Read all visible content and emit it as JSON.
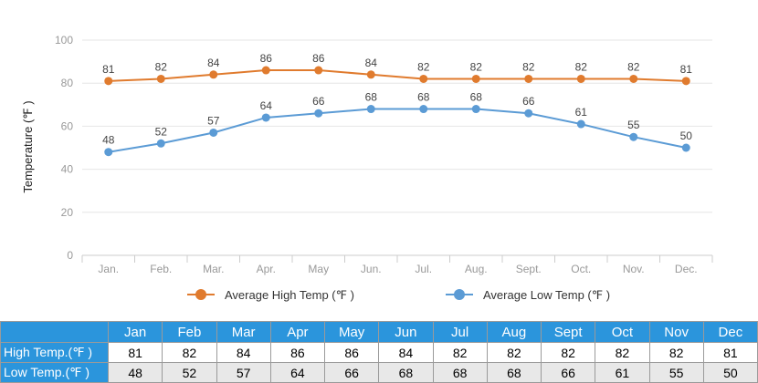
{
  "chart_data": {
    "type": "line",
    "categories": [
      "Jan.",
      "Feb.",
      "Mar.",
      "Apr.",
      "May",
      "Jun.",
      "Jul.",
      "Aug.",
      "Sept.",
      "Oct.",
      "Nov.",
      "Dec."
    ],
    "series": [
      {
        "name": "Average High Temp (℉ )",
        "color": "#e07b2e",
        "values": [
          81,
          82,
          84,
          86,
          86,
          84,
          82,
          82,
          82,
          82,
          82,
          81
        ]
      },
      {
        "name": "Average Low Temp (℉ )",
        "color": "#5b9bd5",
        "values": [
          48,
          52,
          57,
          64,
          66,
          68,
          68,
          68,
          66,
          61,
          55,
          50
        ]
      }
    ],
    "yticks": [
      0,
      20,
      40,
      60,
      80,
      100
    ],
    "ylim": [
      0,
      100
    ],
    "ylabel": "Temperature (℉ )",
    "xlabel": "",
    "title": "",
    "grid": true,
    "legend": "bottom"
  },
  "table": {
    "months": [
      "Jan",
      "Feb",
      "Mar",
      "Apr",
      "May",
      "Jun",
      "Jul",
      "Aug",
      "Sept",
      "Oct",
      "Nov",
      "Dec"
    ],
    "high_label": "High Temp.(℉ )",
    "low_label": "Low Temp.(℉ )",
    "high": [
      81,
      82,
      84,
      86,
      86,
      84,
      82,
      82,
      82,
      82,
      82,
      81
    ],
    "low": [
      48,
      52,
      57,
      64,
      66,
      68,
      68,
      68,
      66,
      61,
      55,
      50
    ]
  },
  "colors": {
    "header_bg": "#2b95dc",
    "high_line": "#e07b2e",
    "low_line": "#5b9bd5"
  }
}
